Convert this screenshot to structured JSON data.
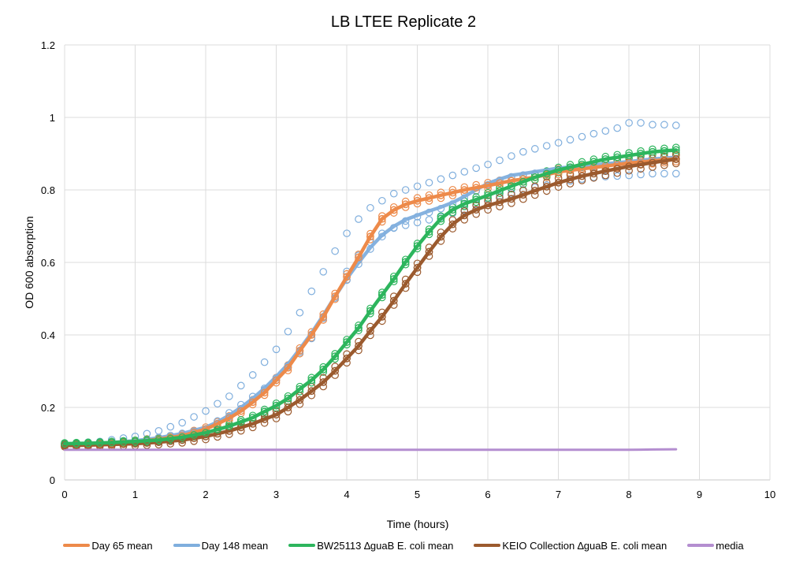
{
  "chart_data": {
    "type": "scatter",
    "title": "LB LTEE Replicate 2",
    "xlabel": "Time (hours)",
    "ylabel": "OD 600 absorption",
    "xlim": [
      0,
      10
    ],
    "ylim": [
      0,
      1.2
    ],
    "xticks": [
      "0",
      "1",
      "2",
      "3",
      "4",
      "5",
      "6",
      "7",
      "8",
      "9",
      "10"
    ],
    "yticks": [
      "0",
      "0.2",
      "0.4",
      "0.6",
      "0.8",
      "1",
      "1.2"
    ],
    "grid": true,
    "legend_position": "bottom",
    "time_step_hours": 0.1667,
    "series": [
      {
        "name": "Day 65 mean",
        "color": "#ED8A4A",
        "mean": [
          [
            0,
            0.095
          ],
          [
            0.33,
            0.097
          ],
          [
            0.67,
            0.1
          ],
          [
            1,
            0.105
          ],
          [
            1.33,
            0.112
          ],
          [
            1.67,
            0.122
          ],
          [
            2,
            0.14
          ],
          [
            2.17,
            0.155
          ],
          [
            2.33,
            0.17
          ],
          [
            2.5,
            0.19
          ],
          [
            2.67,
            0.215
          ],
          [
            2.83,
            0.24
          ],
          [
            3,
            0.275
          ],
          [
            3.17,
            0.31
          ],
          [
            3.33,
            0.355
          ],
          [
            3.5,
            0.4
          ],
          [
            3.67,
            0.45
          ],
          [
            3.83,
            0.505
          ],
          [
            4,
            0.56
          ],
          [
            4.17,
            0.615
          ],
          [
            4.33,
            0.67
          ],
          [
            4.5,
            0.72
          ],
          [
            4.67,
            0.745
          ],
          [
            4.83,
            0.76
          ],
          [
            5,
            0.77
          ],
          [
            5.33,
            0.785
          ],
          [
            5.67,
            0.8
          ],
          [
            6,
            0.812
          ],
          [
            6.33,
            0.825
          ],
          [
            6.67,
            0.835
          ],
          [
            7,
            0.85
          ],
          [
            7.33,
            0.858
          ],
          [
            7.67,
            0.866
          ],
          [
            8,
            0.874
          ],
          [
            8.33,
            0.88
          ],
          [
            8.67,
            0.886
          ],
          [
            8.83,
            0.89
          ]
        ],
        "replicates_spread": 0.008
      },
      {
        "name": "Day 148 mean",
        "color": "#7FAEDD",
        "mean": [
          [
            0,
            0.097
          ],
          [
            0.33,
            0.099
          ],
          [
            0.67,
            0.103
          ],
          [
            1,
            0.108
          ],
          [
            1.33,
            0.116
          ],
          [
            1.67,
            0.128
          ],
          [
            2,
            0.145
          ],
          [
            2.17,
            0.16
          ],
          [
            2.33,
            0.178
          ],
          [
            2.5,
            0.2
          ],
          [
            2.67,
            0.225
          ],
          [
            2.83,
            0.252
          ],
          [
            3,
            0.285
          ],
          [
            3.17,
            0.32
          ],
          [
            3.33,
            0.36
          ],
          [
            3.5,
            0.405
          ],
          [
            3.67,
            0.455
          ],
          [
            3.83,
            0.505
          ],
          [
            4,
            0.555
          ],
          [
            4.17,
            0.6
          ],
          [
            4.33,
            0.64
          ],
          [
            4.5,
            0.675
          ],
          [
            4.67,
            0.7
          ],
          [
            4.83,
            0.718
          ],
          [
            5,
            0.73
          ],
          [
            5.17,
            0.742
          ],
          [
            5.33,
            0.752
          ],
          [
            5.5,
            0.765
          ],
          [
            5.67,
            0.782
          ],
          [
            5.83,
            0.8
          ],
          [
            6,
            0.818
          ],
          [
            6.17,
            0.83
          ],
          [
            6.33,
            0.84
          ],
          [
            6.67,
            0.85
          ],
          [
            7,
            0.86
          ],
          [
            7.33,
            0.866
          ],
          [
            7.67,
            0.872
          ],
          [
            8,
            0.878
          ],
          [
            8.33,
            0.885
          ],
          [
            8.67,
            0.89
          ],
          [
            8.83,
            0.893
          ]
        ],
        "replicates": {
          "high": [
            [
              0,
              0.1
            ],
            [
              0.5,
              0.106
            ],
            [
              1,
              0.12
            ],
            [
              1.33,
              0.135
            ],
            [
              1.67,
              0.158
            ],
            [
              2,
              0.19
            ],
            [
              2.33,
              0.23
            ],
            [
              2.67,
              0.29
            ],
            [
              3,
              0.36
            ],
            [
              3.17,
              0.41
            ],
            [
              3.33,
              0.46
            ],
            [
              3.5,
              0.52
            ],
            [
              3.67,
              0.575
            ],
            [
              3.83,
              0.63
            ],
            [
              4,
              0.68
            ],
            [
              4.17,
              0.72
            ],
            [
              4.33,
              0.75
            ],
            [
              4.5,
              0.77
            ],
            [
              4.67,
              0.79
            ],
            [
              5,
              0.81
            ],
            [
              5.5,
              0.84
            ],
            [
              6,
              0.87
            ],
            [
              6.5,
              0.905
            ],
            [
              7,
              0.93
            ],
            [
              7.5,
              0.955
            ],
            [
              7.83,
              0.97
            ],
            [
              8,
              0.985
            ],
            [
              8.17,
              0.985
            ],
            [
              8.33,
              0.98
            ],
            [
              8.5,
              0.98
            ],
            [
              8.67,
              0.978
            ],
            [
              8.83,
              0.978
            ]
          ],
          "low": [
            [
              0,
              0.095
            ],
            [
              1,
              0.105
            ],
            [
              2,
              0.14
            ],
            [
              3,
              0.275
            ],
            [
              3.5,
              0.39
            ],
            [
              3.83,
              0.5
            ],
            [
              4,
              0.575
            ],
            [
              4.17,
              0.62
            ],
            [
              4.33,
              0.655
            ],
            [
              4.5,
              0.68
            ],
            [
              4.67,
              0.695
            ],
            [
              5,
              0.71
            ],
            [
              5.33,
              0.725
            ],
            [
              5.67,
              0.745
            ],
            [
              6,
              0.775
            ],
            [
              6.5,
              0.8
            ],
            [
              7,
              0.82
            ],
            [
              7.5,
              0.835
            ],
            [
              8,
              0.84
            ],
            [
              8.33,
              0.845
            ],
            [
              8.83,
              0.845
            ]
          ]
        }
      },
      {
        "name": "BW25113 ∆guaB E. coli mean",
        "color": "#2DB55D",
        "mean": [
          [
            0,
            0.1
          ],
          [
            0.33,
            0.101
          ],
          [
            0.67,
            0.103
          ],
          [
            1,
            0.106
          ],
          [
            1.33,
            0.11
          ],
          [
            1.67,
            0.118
          ],
          [
            2,
            0.13
          ],
          [
            2.33,
            0.148
          ],
          [
            2.67,
            0.172
          ],
          [
            3,
            0.205
          ],
          [
            3.17,
            0.225
          ],
          [
            3.33,
            0.25
          ],
          [
            3.5,
            0.275
          ],
          [
            3.67,
            0.305
          ],
          [
            3.83,
            0.34
          ],
          [
            4,
            0.38
          ],
          [
            4.17,
            0.42
          ],
          [
            4.33,
            0.465
          ],
          [
            4.5,
            0.51
          ],
          [
            4.67,
            0.555
          ],
          [
            4.83,
            0.6
          ],
          [
            5,
            0.645
          ],
          [
            5.17,
            0.685
          ],
          [
            5.33,
            0.72
          ],
          [
            5.5,
            0.745
          ],
          [
            5.67,
            0.762
          ],
          [
            6,
            0.785
          ],
          [
            6.33,
            0.81
          ],
          [
            6.67,
            0.835
          ],
          [
            7,
            0.855
          ],
          [
            7.33,
            0.87
          ],
          [
            7.67,
            0.885
          ],
          [
            8,
            0.895
          ],
          [
            8.33,
            0.905
          ],
          [
            8.67,
            0.91
          ],
          [
            8.83,
            0.912
          ]
        ],
        "replicates_spread": 0.007
      },
      {
        "name": "KEIO Collection ∆guaB E. coli mean",
        "color": "#9B5A2E",
        "mean": [
          [
            0,
            0.095
          ],
          [
            0.33,
            0.096
          ],
          [
            0.67,
            0.098
          ],
          [
            1,
            0.1
          ],
          [
            1.33,
            0.104
          ],
          [
            1.67,
            0.11
          ],
          [
            2,
            0.12
          ],
          [
            2.33,
            0.135
          ],
          [
            2.67,
            0.155
          ],
          [
            3,
            0.18
          ],
          [
            3.17,
            0.2
          ],
          [
            3.33,
            0.22
          ],
          [
            3.5,
            0.245
          ],
          [
            3.67,
            0.27
          ],
          [
            3.83,
            0.3
          ],
          [
            4,
            0.335
          ],
          [
            4.17,
            0.37
          ],
          [
            4.33,
            0.41
          ],
          [
            4.5,
            0.45
          ],
          [
            4.67,
            0.495
          ],
          [
            4.83,
            0.54
          ],
          [
            5,
            0.585
          ],
          [
            5.17,
            0.63
          ],
          [
            5.33,
            0.67
          ],
          [
            5.5,
            0.705
          ],
          [
            5.67,
            0.73
          ],
          [
            5.83,
            0.745
          ],
          [
            6,
            0.757
          ],
          [
            6.33,
            0.775
          ],
          [
            6.67,
            0.798
          ],
          [
            7,
            0.82
          ],
          [
            7.33,
            0.838
          ],
          [
            7.67,
            0.852
          ],
          [
            8,
            0.865
          ],
          [
            8.33,
            0.875
          ],
          [
            8.67,
            0.885
          ],
          [
            8.83,
            0.89
          ]
        ],
        "replicates_spread": 0.012
      },
      {
        "name": "media",
        "color": "#B48ED0",
        "mean": [
          [
            0,
            0.083
          ],
          [
            1,
            0.083
          ],
          [
            2,
            0.083
          ],
          [
            3,
            0.083
          ],
          [
            4,
            0.083
          ],
          [
            5,
            0.083
          ],
          [
            6,
            0.083
          ],
          [
            7,
            0.083
          ],
          [
            8,
            0.083
          ],
          [
            8.83,
            0.085
          ]
        ]
      }
    ]
  }
}
